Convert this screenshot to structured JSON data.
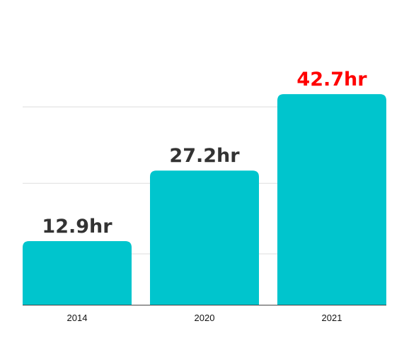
{
  "chart_data": {
    "type": "bar",
    "title": "",
    "xlabel": "",
    "ylabel": "",
    "categories": [
      "2014",
      "2020",
      "2021"
    ],
    "values": [
      12.9,
      27.2,
      42.7
    ],
    "value_labels": [
      "12.9hr",
      "27.2hr",
      "42.7hr"
    ],
    "unit": "hr",
    "ylim": [
      0,
      43
    ],
    "grid": false,
    "legend": "none",
    "colors": {
      "bar": "#00C5CD",
      "label": "#333333",
      "highlight_label": "#FF0000",
      "axis": "#444444",
      "guide": "#DDDDDD"
    },
    "highlight_index": 2
  }
}
